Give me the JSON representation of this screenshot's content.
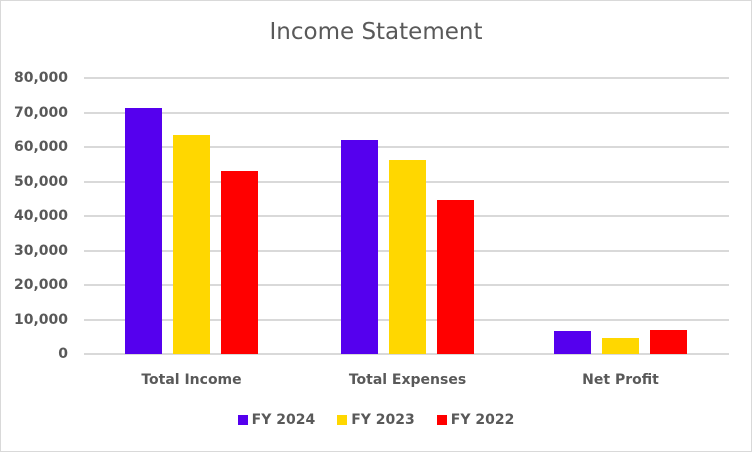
{
  "chart_data": {
    "type": "bar",
    "title": "Income Statement",
    "xlabel": "",
    "ylabel": "",
    "categories": [
      "Total Income",
      "Total Expenses",
      "Net Profit"
    ],
    "series": [
      {
        "name": "FY 2024",
        "color": "#5500ee",
        "values": [
          71300,
          62000,
          6700
        ]
      },
      {
        "name": "FY 2023",
        "color": "#ffd700",
        "values": [
          63500,
          56200,
          4600
        ]
      },
      {
        "name": "FY 2022",
        "color": "#ff0000",
        "values": [
          53000,
          44600,
          7000
        ]
      }
    ],
    "ylim": [
      0,
      80000
    ],
    "yticks": [
      "0",
      "10,000",
      "20,000",
      "30,000",
      "40,000",
      "50,000",
      "60,000",
      "70,000",
      "80,000"
    ],
    "grid": true,
    "legend_position": "bottom"
  }
}
